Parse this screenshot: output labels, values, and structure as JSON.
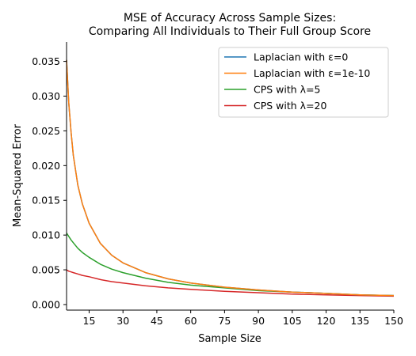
{
  "chart_data": {
    "type": "line",
    "title_line1": "MSE of Accuracy Across Sample Sizes:",
    "title_line2": "Comparing All Individuals to Their Full Group Score",
    "xlabel": "Sample Size",
    "ylabel": "Mean-Squared Error",
    "xlim": [
      5,
      150
    ],
    "ylim": [
      -0.0008,
      0.0378
    ],
    "x_ticks": [
      15,
      30,
      45,
      60,
      75,
      90,
      105,
      120,
      135,
      150
    ],
    "y_ticks": [
      0.0,
      0.005,
      0.01,
      0.015,
      0.02,
      0.025,
      0.03,
      0.035
    ],
    "y_tick_labels": [
      "0.000",
      "0.005",
      "0.010",
      "0.015",
      "0.020",
      "0.025",
      "0.030",
      "0.035"
    ],
    "grid": false,
    "legend_position": "top-right",
    "x": [
      5,
      6,
      7,
      8,
      10,
      12,
      15,
      20,
      25,
      30,
      40,
      50,
      60,
      75,
      90,
      105,
      120,
      135,
      150
    ],
    "series": [
      {
        "name": "Laplacian with ε=0",
        "color": "#1f77b4",
        "values": [
          0.0352,
          0.029,
          0.0248,
          0.0215,
          0.0172,
          0.0145,
          0.0117,
          0.0088,
          0.0071,
          0.006,
          0.0046,
          0.0037,
          0.0031,
          0.0025,
          0.0021,
          0.0018,
          0.0016,
          0.0014,
          0.0013
        ]
      },
      {
        "name": "Laplacian with ε=1e-10",
        "color": "#ff7f0e",
        "values": [
          0.0352,
          0.029,
          0.0248,
          0.0215,
          0.0172,
          0.0145,
          0.0117,
          0.0088,
          0.0071,
          0.006,
          0.0046,
          0.0037,
          0.0031,
          0.0025,
          0.0021,
          0.0018,
          0.0016,
          0.0014,
          0.0013
        ]
      },
      {
        "name": "CPS with λ=5",
        "color": "#2ca02c",
        "values": [
          0.0103,
          0.0098,
          0.0093,
          0.0089,
          0.0081,
          0.0075,
          0.0068,
          0.0058,
          0.0051,
          0.0046,
          0.0038,
          0.0032,
          0.0028,
          0.0024,
          0.002,
          0.0018,
          0.0016,
          0.0014,
          0.0013
        ]
      },
      {
        "name": "CPS with λ=20",
        "color": "#d62728",
        "values": [
          0.005,
          0.0048,
          0.0047,
          0.0046,
          0.0044,
          0.0042,
          0.004,
          0.0036,
          0.0033,
          0.0031,
          0.0027,
          0.0024,
          0.0022,
          0.0019,
          0.0017,
          0.0015,
          0.0014,
          0.0013,
          0.0012
        ]
      }
    ]
  }
}
